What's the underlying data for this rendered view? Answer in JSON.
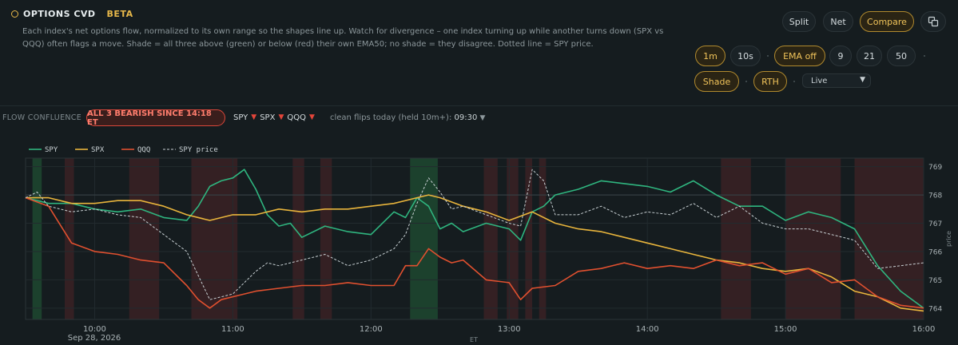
{
  "header": {
    "title": "OPTIONS CVD",
    "badge": "BETA",
    "description": "Each index's net options flow, normalized to its own range so the shapes line up. Watch for divergence – one index turning up while another turns down (SPX vs QQQ) often flags a move. Shade = all three above (green) or below (red) their own EMA50; no shade = they disagree. Dotted line = SPY price."
  },
  "view_buttons": {
    "split": "Split",
    "net": "Net",
    "compare": "Compare",
    "active": "Compare"
  },
  "interval_buttons": {
    "m1": "1m",
    "s10": "10s",
    "active": "1m"
  },
  "ema_buttons": {
    "off": "EMA off",
    "e9": "9",
    "e21": "21",
    "e50": "50",
    "active": "EMA off"
  },
  "toggles": {
    "shade": "Shade",
    "rth": "RTH"
  },
  "mode_select": {
    "value": "Live"
  },
  "confluence": {
    "label": "FLOW CONFLUENCE",
    "status": "ALL 3 BEARISH SINCE 14:18 ET",
    "tickers": [
      "SPY",
      "SPX",
      "QQQ"
    ],
    "flips_label": "clean flips today (held 10m+):",
    "flips_value": "09:30"
  },
  "colors": {
    "spy": "#2fb57f",
    "spx": "#e9b53c",
    "qqq": "#e0502f",
    "price": "#c9d1d4",
    "bull_shade": "#1f4d33",
    "bear_shade": "#4a2326"
  },
  "chart_data": {
    "type": "line",
    "legend": [
      "SPY",
      "SPX",
      "QQQ",
      "SPY price"
    ],
    "legend_position": "top-left",
    "xlabel": "ET",
    "date_label": "Sep 28, 2026",
    "x_ticks": [
      "10:00",
      "11:00",
      "12:00",
      "13:00",
      "14:00",
      "15:00",
      "16:00"
    ],
    "x_range": [
      "09:30",
      "16:00"
    ],
    "y_right_label": "price",
    "y_right_ticks": [
      764,
      765,
      766,
      767,
      768,
      769
    ],
    "y_right_range": [
      763.6,
      769.3
    ],
    "grid": true,
    "shade_bands": [
      {
        "start": "09:33",
        "end": "09:37",
        "type": "bull"
      },
      {
        "start": "09:47",
        "end": "09:51",
        "type": "bear"
      },
      {
        "start": "10:15",
        "end": "10:28",
        "type": "bear"
      },
      {
        "start": "10:42",
        "end": "11:02",
        "type": "bear"
      },
      {
        "start": "11:26",
        "end": "11:31",
        "type": "bear"
      },
      {
        "start": "11:38",
        "end": "11:43",
        "type": "bear"
      },
      {
        "start": "12:17",
        "end": "12:29",
        "type": "bull"
      },
      {
        "start": "12:49",
        "end": "12:55",
        "type": "bear"
      },
      {
        "start": "12:59",
        "end": "13:04",
        "type": "bear"
      },
      {
        "start": "13:07",
        "end": "13:10",
        "type": "bear"
      },
      {
        "start": "13:13",
        "end": "13:16",
        "type": "bear"
      },
      {
        "start": "14:32",
        "end": "14:45",
        "type": "bear"
      },
      {
        "start": "15:00",
        "end": "15:24",
        "type": "bear"
      },
      {
        "start": "15:30",
        "end": "16:00",
        "type": "bear"
      }
    ],
    "series": [
      {
        "name": "SPY",
        "x": [
          "09:30",
          "09:40",
          "09:50",
          "10:00",
          "10:10",
          "10:20",
          "10:30",
          "10:40",
          "10:45",
          "10:50",
          "10:55",
          "11:00",
          "11:05",
          "11:10",
          "11:15",
          "11:20",
          "11:25",
          "11:30",
          "11:40",
          "11:50",
          "12:00",
          "12:10",
          "12:15",
          "12:20",
          "12:25",
          "12:30",
          "12:35",
          "12:40",
          "12:50",
          "13:00",
          "13:05",
          "13:10",
          "13:15",
          "13:20",
          "13:30",
          "13:40",
          "13:50",
          "14:00",
          "14:10",
          "14:20",
          "14:30",
          "14:40",
          "14:50",
          "15:00",
          "15:10",
          "15:20",
          "15:30",
          "15:40",
          "15:50",
          "16:00"
        ],
        "y": [
          767.9,
          767.7,
          767.7,
          767.5,
          767.4,
          767.5,
          767.2,
          767.1,
          767.6,
          768.3,
          768.5,
          768.6,
          768.9,
          768.2,
          767.3,
          766.9,
          767.0,
          766.5,
          766.9,
          766.7,
          766.6,
          767.4,
          767.2,
          767.9,
          767.6,
          766.8,
          767.0,
          766.7,
          767.0,
          766.8,
          766.4,
          767.4,
          767.6,
          768.0,
          768.2,
          768.5,
          768.4,
          768.3,
          768.1,
          768.5,
          768.0,
          767.6,
          767.6,
          767.1,
          767.4,
          767.2,
          766.8,
          765.5,
          764.6,
          764.0
        ]
      },
      {
        "name": "SPX",
        "x": [
          "09:30",
          "09:40",
          "09:50",
          "10:00",
          "10:10",
          "10:20",
          "10:30",
          "10:40",
          "10:50",
          "11:00",
          "11:10",
          "11:20",
          "11:30",
          "11:40",
          "11:50",
          "12:00",
          "12:10",
          "12:20",
          "12:25",
          "12:30",
          "12:40",
          "12:50",
          "13:00",
          "13:10",
          "13:20",
          "13:30",
          "13:40",
          "13:50",
          "14:00",
          "14:10",
          "14:20",
          "14:30",
          "14:40",
          "14:50",
          "15:00",
          "15:10",
          "15:20",
          "15:30",
          "15:40",
          "15:50",
          "16:00"
        ],
        "y": [
          767.9,
          767.9,
          767.7,
          767.7,
          767.8,
          767.8,
          767.6,
          767.3,
          767.1,
          767.3,
          767.3,
          767.5,
          767.4,
          767.5,
          767.5,
          767.6,
          767.7,
          767.9,
          768.0,
          767.9,
          767.6,
          767.4,
          767.1,
          767.4,
          767.0,
          766.8,
          766.7,
          766.5,
          766.3,
          766.1,
          765.9,
          765.7,
          765.6,
          765.4,
          765.3,
          765.4,
          765.1,
          764.6,
          764.4,
          764.0,
          763.9
        ]
      },
      {
        "name": "QQQ",
        "x": [
          "09:30",
          "09:40",
          "09:50",
          "10:00",
          "10:10",
          "10:20",
          "10:30",
          "10:40",
          "10:45",
          "10:50",
          "10:55",
          "11:00",
          "11:10",
          "11:20",
          "11:30",
          "11:40",
          "11:50",
          "12:00",
          "12:10",
          "12:15",
          "12:20",
          "12:25",
          "12:30",
          "12:35",
          "12:40",
          "12:50",
          "13:00",
          "13:05",
          "13:10",
          "13:20",
          "13:30",
          "13:40",
          "13:50",
          "14:00",
          "14:10",
          "14:20",
          "14:30",
          "14:40",
          "14:50",
          "15:00",
          "15:10",
          "15:20",
          "15:30",
          "15:40",
          "15:50",
          "16:00"
        ],
        "y": [
          767.9,
          767.6,
          766.3,
          766.0,
          765.9,
          765.7,
          765.6,
          764.8,
          764.3,
          764.0,
          764.3,
          764.4,
          764.6,
          764.7,
          764.8,
          764.8,
          764.9,
          764.8,
          764.8,
          765.5,
          765.5,
          766.1,
          765.8,
          765.6,
          765.7,
          765.0,
          764.9,
          764.3,
          764.7,
          764.8,
          765.3,
          765.4,
          765.6,
          765.4,
          765.5,
          765.4,
          765.7,
          765.5,
          765.6,
          765.2,
          765.4,
          764.9,
          765.0,
          764.4,
          764.1,
          764.0
        ]
      },
      {
        "name": "SPY price",
        "dashed": true,
        "x": [
          "09:30",
          "09:35",
          "09:40",
          "09:50",
          "10:00",
          "10:10",
          "10:20",
          "10:30",
          "10:40",
          "10:50",
          "11:00",
          "11:05",
          "11:10",
          "11:15",
          "11:20",
          "11:30",
          "11:40",
          "11:50",
          "12:00",
          "12:10",
          "12:15",
          "12:20",
          "12:25",
          "12:30",
          "12:35",
          "12:40",
          "12:50",
          "13:00",
          "13:05",
          "13:10",
          "13:15",
          "13:20",
          "13:30",
          "13:40",
          "13:50",
          "14:00",
          "14:10",
          "14:20",
          "14:30",
          "14:40",
          "14:50",
          "15:00",
          "15:10",
          "15:20",
          "15:30",
          "15:40",
          "15:50",
          "16:00"
        ],
        "y": [
          767.9,
          768.1,
          767.6,
          767.4,
          767.5,
          767.3,
          767.2,
          766.6,
          766.0,
          764.3,
          764.5,
          764.9,
          765.3,
          765.6,
          765.5,
          765.7,
          765.9,
          765.5,
          765.7,
          766.1,
          766.6,
          767.7,
          768.6,
          768.1,
          767.5,
          767.6,
          767.3,
          767.0,
          766.9,
          768.9,
          768.5,
          767.3,
          767.3,
          767.6,
          767.2,
          767.4,
          767.3,
          767.7,
          767.2,
          767.6,
          767.0,
          766.8,
          766.8,
          766.6,
          766.4,
          765.4,
          765.5,
          765.6
        ]
      }
    ]
  }
}
